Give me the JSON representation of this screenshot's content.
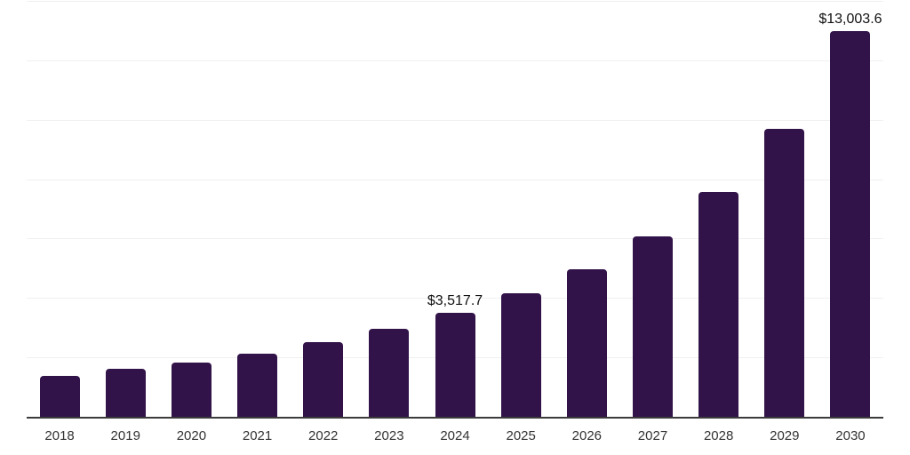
{
  "style": {
    "background": "#ffffff",
    "bar_color": "#321349",
    "gridline_color": "#f0f0f0",
    "axis_line_color": "#3b3b3b",
    "tick_label_color": "#333333",
    "value_label_color": "#111111"
  },
  "chart_data": {
    "type": "bar",
    "title": "",
    "xlabel": "",
    "ylabel": "",
    "categories": [
      "2018",
      "2019",
      "2020",
      "2021",
      "2022",
      "2023",
      "2024",
      "2025",
      "2026",
      "2027",
      "2028",
      "2029",
      "2030"
    ],
    "values": [
      1400,
      1635,
      1870,
      2165,
      2550,
      2985,
      3517.7,
      4190,
      5000,
      6115,
      7595,
      9730,
      13003.6
    ],
    "data_labels": {
      "2024": "$3,517.7",
      "2030": "$13,003.6"
    },
    "ylim": [
      0,
      14000
    ],
    "gridline_step": 2000,
    "grid": "horizontal",
    "legend": "none",
    "y_axis_labels_visible": false,
    "notes": "Only 2024 and 2030 bars carry visible data labels; other values estimated from bar heights against gridlines every 2000."
  }
}
